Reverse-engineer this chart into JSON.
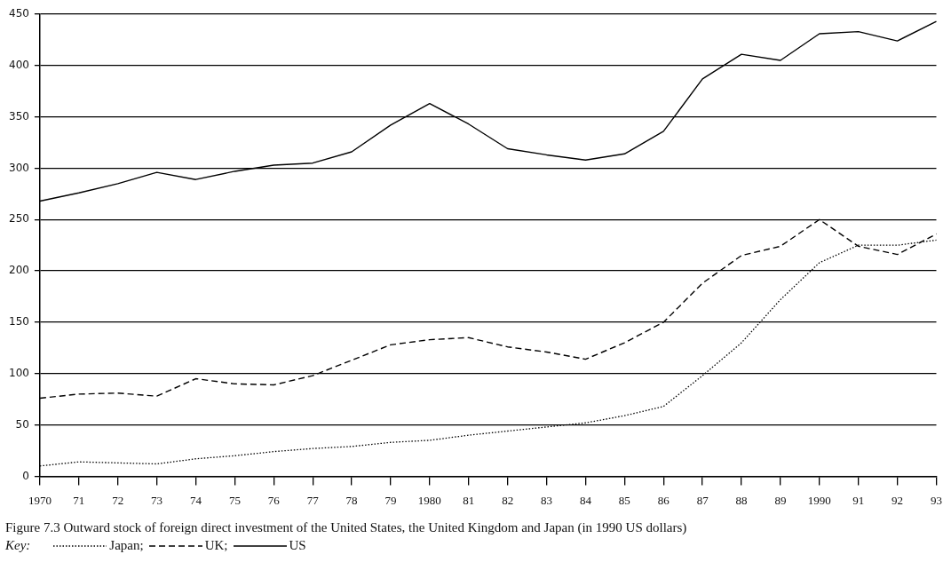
{
  "chart_data": {
    "type": "line",
    "title": "Figure 7.3 Outward stock of foreign direct investment of the United States, the United Kingdom and Japan (in 1990 US dollars)",
    "legend_title": "Key:",
    "categories": [
      "1970",
      "71",
      "72",
      "73",
      "74",
      "75",
      "76",
      "77",
      "78",
      "79",
      "1980",
      "81",
      "82",
      "83",
      "84",
      "85",
      "86",
      "87",
      "88",
      "89",
      "1990",
      "91",
      "92",
      "93"
    ],
    "series": [
      {
        "name": "Japan;",
        "color": "#000000",
        "line_style": "dotted",
        "values": [
          10,
          14,
          13,
          12,
          17,
          20,
          24,
          27,
          29,
          33,
          35,
          40,
          44,
          48,
          52,
          59,
          68,
          98,
          130,
          172,
          208,
          225,
          225,
          230
        ]
      },
      {
        "name": "UK;",
        "color": "#000000",
        "line_style": "dashed",
        "values": [
          76,
          80,
          81,
          78,
          95,
          90,
          89,
          98,
          113,
          128,
          133,
          135,
          126,
          121,
          114,
          130,
          150,
          188,
          215,
          224,
          250,
          224,
          216,
          236
        ]
      },
      {
        "name": "US",
        "color": "#000000",
        "line_style": "solid",
        "values": [
          268,
          276,
          285,
          296,
          289,
          297,
          303,
          305,
          316,
          342,
          363,
          343,
          319,
          313,
          308,
          314,
          336,
          387,
          411,
          405,
          431,
          433,
          424,
          443
        ]
      }
    ],
    "ylim": [
      0,
      450
    ],
    "yticks": [
      0,
      50,
      100,
      150,
      200,
      250,
      300,
      350,
      400,
      450
    ],
    "grid": "y",
    "legend": "bottom",
    "marker": "none"
  }
}
